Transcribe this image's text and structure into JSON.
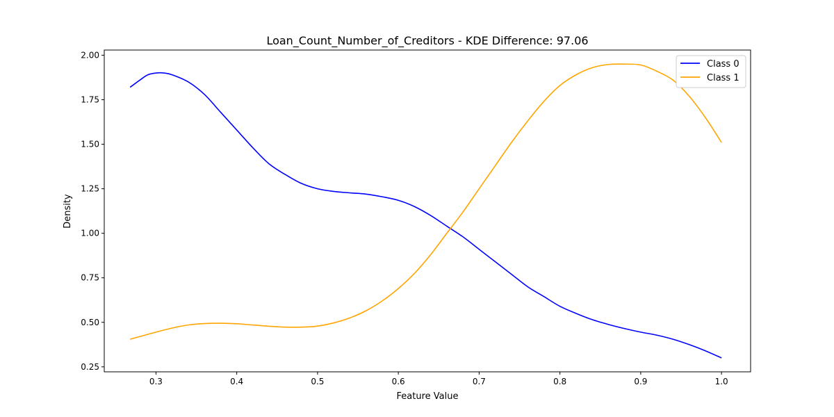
{
  "chart_data": {
    "type": "line",
    "title": "Loan_Count_Number_of_Creditors - KDE Difference: 97.06",
    "xlabel": "Feature Value",
    "ylabel": "Density",
    "xlim": [
      0.236,
      1.036
    ],
    "ylim": [
      0.222,
      2.029
    ],
    "x_ticks": [
      0.3,
      0.4,
      0.5,
      0.6,
      0.7,
      0.8,
      0.9,
      1.0
    ],
    "x_tick_labels": [
      "0.3",
      "0.4",
      "0.5",
      "0.6",
      "0.7",
      "0.8",
      "0.9",
      "1.0"
    ],
    "y_ticks": [
      0.25,
      0.5,
      0.75,
      1.0,
      1.25,
      1.5,
      1.75,
      2.0
    ],
    "y_tick_labels": [
      "0.25",
      "0.50",
      "0.75",
      "1.00",
      "1.25",
      "1.50",
      "1.75",
      "2.00"
    ],
    "grid": false,
    "legend_position": "top-right",
    "series": [
      {
        "name": "Class 0",
        "color": "#0000ff",
        "x": [
          0.268,
          0.28,
          0.29,
          0.3,
          0.31,
          0.32,
          0.34,
          0.36,
          0.38,
          0.4,
          0.42,
          0.44,
          0.46,
          0.48,
          0.5,
          0.52,
          0.54,
          0.56,
          0.58,
          0.6,
          0.62,
          0.64,
          0.66,
          0.68,
          0.7,
          0.72,
          0.74,
          0.76,
          0.78,
          0.8,
          0.82,
          0.84,
          0.86,
          0.88,
          0.9,
          0.92,
          0.94,
          0.96,
          0.98,
          1.0
        ],
        "y": [
          1.82,
          1.86,
          1.89,
          1.9,
          1.9,
          1.89,
          1.85,
          1.78,
          1.68,
          1.58,
          1.48,
          1.39,
          1.33,
          1.28,
          1.25,
          1.235,
          1.227,
          1.22,
          1.205,
          1.185,
          1.15,
          1.1,
          1.04,
          0.98,
          0.91,
          0.84,
          0.77,
          0.7,
          0.645,
          0.59,
          0.55,
          0.515,
          0.488,
          0.465,
          0.445,
          0.428,
          0.405,
          0.375,
          0.34,
          0.3
        ]
      },
      {
        "name": "Class 1",
        "color": "#ffa500",
        "x": [
          0.268,
          0.28,
          0.3,
          0.32,
          0.34,
          0.36,
          0.38,
          0.4,
          0.42,
          0.44,
          0.46,
          0.48,
          0.5,
          0.52,
          0.54,
          0.56,
          0.58,
          0.6,
          0.62,
          0.64,
          0.66,
          0.68,
          0.7,
          0.72,
          0.74,
          0.76,
          0.78,
          0.8,
          0.82,
          0.84,
          0.86,
          0.88,
          0.9,
          0.92,
          0.94,
          0.96,
          0.98,
          1.0
        ],
        "y": [
          0.405,
          0.42,
          0.445,
          0.468,
          0.485,
          0.493,
          0.495,
          0.492,
          0.485,
          0.478,
          0.473,
          0.473,
          0.479,
          0.497,
          0.525,
          0.565,
          0.62,
          0.69,
          0.775,
          0.88,
          1.0,
          1.12,
          1.25,
          1.38,
          1.51,
          1.63,
          1.74,
          1.83,
          1.89,
          1.93,
          1.948,
          1.95,
          1.945,
          1.91,
          1.86,
          1.77,
          1.65,
          1.51
        ]
      }
    ]
  }
}
